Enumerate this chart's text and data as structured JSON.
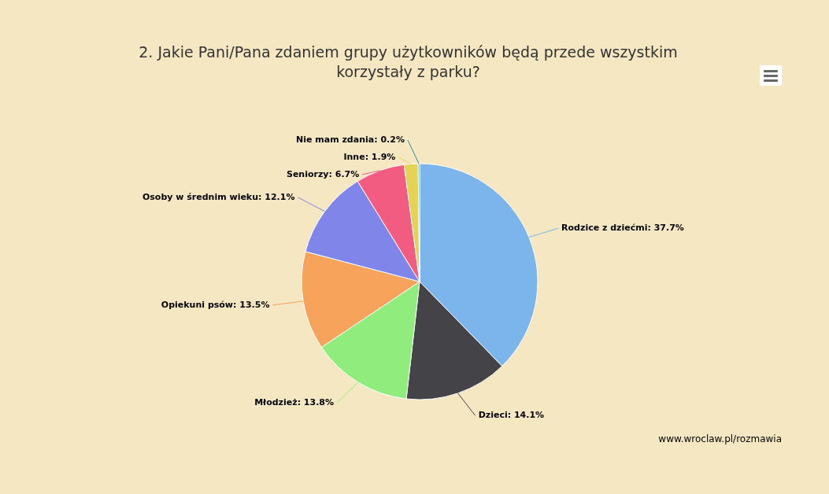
{
  "chart_data": {
    "type": "pie",
    "title": "2. Jakie Pani/Pana zdaniem grupy użytkowników będą przede wszystkim korzystały z parku?",
    "categories": [
      "Rodzice z dziećmi",
      "Dzieci",
      "Młodzież",
      "Opiekuni psów",
      "Osoby w średnim wieku",
      "Seniorzy",
      "Inne",
      "Nie mam zdania"
    ],
    "values": [
      37.7,
      14.1,
      13.8,
      13.5,
      12.1,
      6.7,
      1.9,
      0.2
    ],
    "colors": [
      "#7cb5ec",
      "#434348",
      "#90ed7d",
      "#f7a35c",
      "#8085e9",
      "#f15c80",
      "#e4d354",
      "#2b908f"
    ],
    "value_labels": [
      ": 37.7%",
      ": 14.1%",
      ": 13.8%",
      ": 13.5%",
      ": 12.1%",
      ": 6.7%",
      ": 1.9%",
      ": 0.2%"
    ],
    "legend": false,
    "annotations": [
      "www.wroclaw.pl/rozmawia"
    ]
  }
}
